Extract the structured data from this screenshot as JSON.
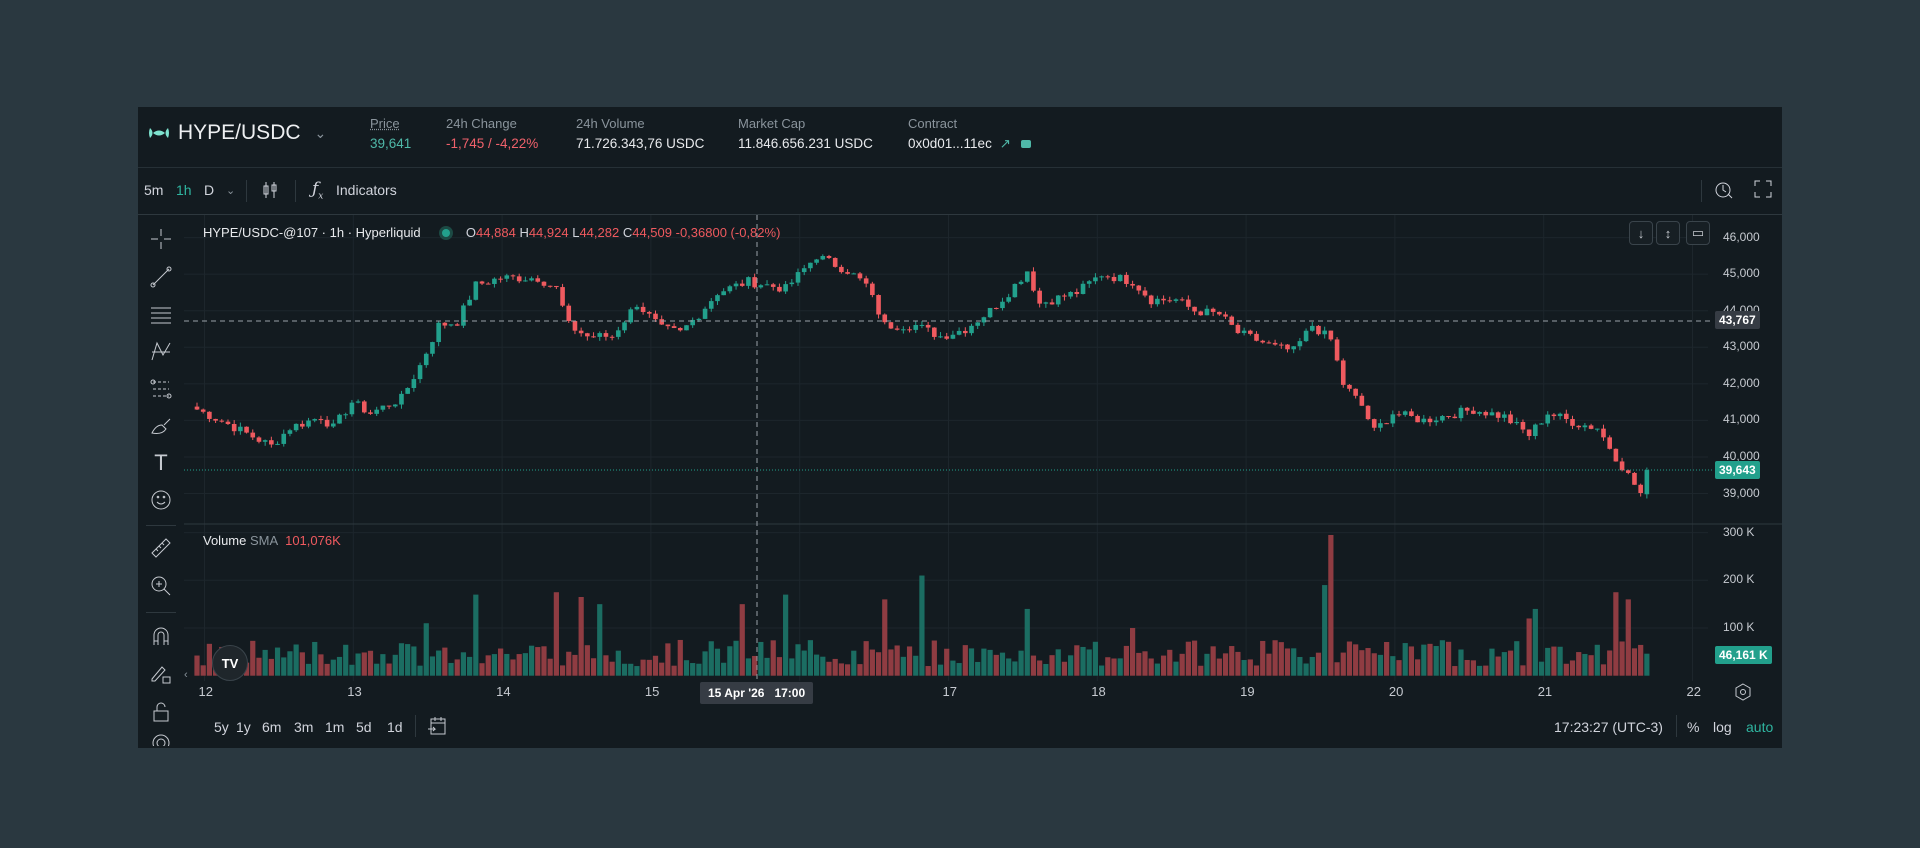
{
  "header": {
    "pair": "HYPE/USDC",
    "stats": [
      {
        "label": "Price",
        "value": "39,641",
        "color": "#4fb8a8"
      },
      {
        "label": "24h Change",
        "value": "-1,745 / -4,22%",
        "color": "#f0616b"
      },
      {
        "label": "24h Volume",
        "value": "71.726.343,76 USDC",
        "color": "#e8eaed"
      },
      {
        "label": "Market Cap",
        "value": "11.846.656.231 USDC",
        "color": "#e8eaed"
      },
      {
        "label": "Contract",
        "value": "0x0d01...11ec",
        "color": "#e8eaed"
      }
    ]
  },
  "toolbar": {
    "intervals": [
      "5m",
      "1h",
      "D"
    ],
    "active_interval": "1h",
    "indicators_label": "Indicators"
  },
  "legend": {
    "symbol": "HYPE/USDC-@107 · 1h · Hyperliquid",
    "o_label": "O",
    "o": "44,884",
    "h_label": "H",
    "h": "44,924",
    "l_label": "L",
    "l": "44,282",
    "c_label": "C",
    "c": "44,509",
    "change": "-0,36800 (-0,82%)",
    "volume_label": "Volume",
    "sma_label": "SMA",
    "sma_value": "101,076K"
  },
  "price_axis": {
    "ticks": [
      "46,000",
      "45,000",
      "44,000",
      "43,000",
      "42,000",
      "41,000",
      "40,000",
      "39,000"
    ],
    "crosshair_label": "43,767",
    "last_price_label": "39,643"
  },
  "volume_axis": {
    "ticks": [
      "300 K",
      "200 K",
      "100 K"
    ],
    "last_volume_label": "46,161 K"
  },
  "time_axis": {
    "ticks": [
      "12",
      "13",
      "14",
      "15",
      "17",
      "18",
      "19",
      "20",
      "21",
      "22"
    ],
    "crosshair_label": "15 Apr '26   17:00"
  },
  "bottom": {
    "ranges": [
      "5y",
      "1y",
      "6m",
      "3m",
      "1m",
      "5d",
      "1d"
    ],
    "clock": "17:23:27 (UTC-3)",
    "percent": "%",
    "log": "log",
    "auto": "auto"
  },
  "colors": {
    "up": "#22a08c",
    "down": "#ef5a5f",
    "up_vol": "#1b6d62",
    "down_vol": "#8f3c42",
    "accent": "#2fb5a0"
  },
  "chart_data": {
    "type": "candlestick",
    "interval": "1h",
    "x_unit": "hours since 12 Apr 00:00",
    "ylim": [
      38500,
      46500
    ],
    "volume_ylim": [
      0,
      300000
    ],
    "close_path": [
      [
        0,
        41300
      ],
      [
        5,
        40900
      ],
      [
        12,
        40300
      ],
      [
        15,
        40800
      ],
      [
        20,
        41100
      ],
      [
        22,
        40800
      ],
      [
        25,
        41500
      ],
      [
        28,
        41200
      ],
      [
        33,
        41600
      ],
      [
        36,
        42500
      ],
      [
        39,
        43600
      ],
      [
        42,
        43700
      ],
      [
        45,
        44700
      ],
      [
        49,
        44900
      ],
      [
        55,
        44900
      ],
      [
        58,
        44600
      ],
      [
        60,
        43600
      ],
      [
        63,
        43300
      ],
      [
        67,
        43300
      ],
      [
        71,
        44200
      ],
      [
        75,
        43500
      ],
      [
        78,
        43400
      ],
      [
        81,
        43900
      ],
      [
        84,
        44500
      ],
      [
        89,
        44800
      ],
      [
        95,
        44600
      ],
      [
        100,
        45500
      ],
      [
        105,
        45100
      ],
      [
        108,
        44700
      ],
      [
        111,
        43600
      ],
      [
        116,
        43600
      ],
      [
        120,
        43300
      ],
      [
        124,
        43500
      ],
      [
        128,
        44000
      ],
      [
        131,
        44500
      ],
      [
        134,
        45100
      ],
      [
        136,
        44200
      ],
      [
        142,
        44500
      ],
      [
        146,
        45000
      ],
      [
        151,
        44800
      ],
      [
        154,
        44300
      ],
      [
        158,
        44300
      ],
      [
        161,
        44000
      ],
      [
        165,
        43900
      ],
      [
        168,
        43400
      ],
      [
        174,
        43000
      ],
      [
        177,
        42900
      ],
      [
        180,
        43600
      ],
      [
        183,
        43200
      ],
      [
        185,
        42000
      ],
      [
        188,
        41400
      ],
      [
        190,
        40700
      ],
      [
        193,
        41200
      ],
      [
        198,
        41000
      ],
      [
        206,
        41300
      ],
      [
        211,
        41100
      ],
      [
        215,
        40600
      ],
      [
        218,
        41200
      ],
      [
        223,
        40900
      ],
      [
        226,
        40800
      ],
      [
        229,
        40000
      ],
      [
        233,
        39000
      ],
      [
        234,
        39643
      ]
    ],
    "volume_spikes": [
      [
        37,
        110000
      ],
      [
        45,
        170000
      ],
      [
        58,
        175000
      ],
      [
        62,
        165000
      ],
      [
        65,
        150000
      ],
      [
        88,
        150000
      ],
      [
        95,
        170000
      ],
      [
        111,
        160000
      ],
      [
        117,
        210000
      ],
      [
        134,
        140000
      ],
      [
        151,
        100000
      ],
      [
        182,
        190000
      ],
      [
        183,
        295000
      ],
      [
        215,
        120000
      ],
      [
        216,
        140000
      ],
      [
        229,
        175000
      ],
      [
        231,
        160000
      ]
    ],
    "last_volume": 46161
  }
}
